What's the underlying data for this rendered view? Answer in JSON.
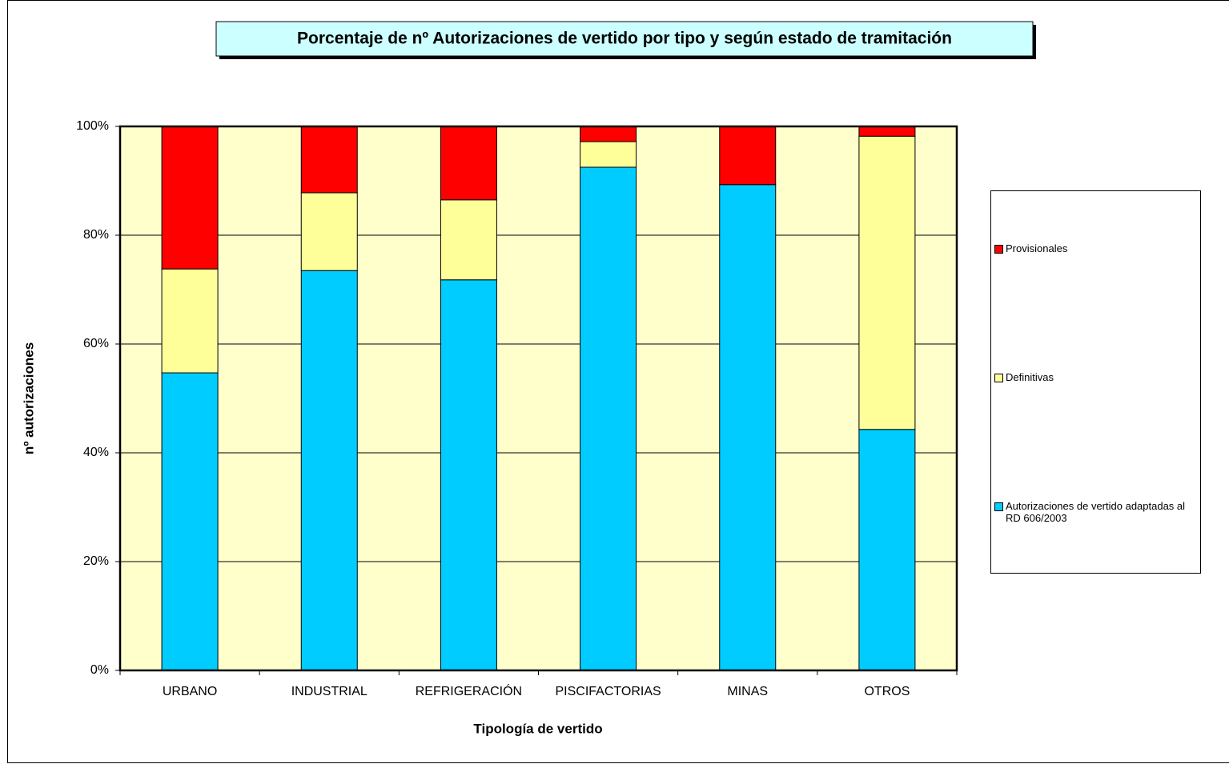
{
  "chart_data": {
    "type": "bar",
    "stacked": true,
    "title": "Porcentaje de nº Autorizaciones de vertido por tipo y según estado de tramitación",
    "x_label": "Tipología de vertido",
    "y_label": "nº autorizaciones",
    "categories": [
      "URBANO",
      "INDUSTRIAL",
      "REFRIGERACIÓN",
      "PISCIFACTORIAS",
      "MINAS",
      "OTROS"
    ],
    "series": [
      {
        "name": "Autorizaciones de vertido adaptadas al RD 606/2003",
        "color": "#00ccff",
        "values": [
          54.7,
          73.5,
          71.8,
          92.5,
          89.3,
          44.3
        ]
      },
      {
        "name": "Definitivas",
        "color": "#ffff99",
        "values": [
          19.1,
          14.3,
          14.7,
          4.7,
          0,
          53.9
        ]
      },
      {
        "name": "Provisionales",
        "color": "#ff0000",
        "values": [
          26.2,
          12.2,
          13.5,
          2.8,
          10.7,
          1.8
        ]
      }
    ],
    "ylim": [
      0,
      100
    ],
    "yticks": [
      {
        "value": 0,
        "label": "0%"
      },
      {
        "value": 20,
        "label": "20%"
      },
      {
        "value": 40,
        "label": "40%"
      },
      {
        "value": 60,
        "label": "60%"
      },
      {
        "value": 80,
        "label": "80%"
      },
      {
        "value": 100,
        "label": "100%"
      }
    ],
    "grid": true,
    "legend": "right"
  }
}
